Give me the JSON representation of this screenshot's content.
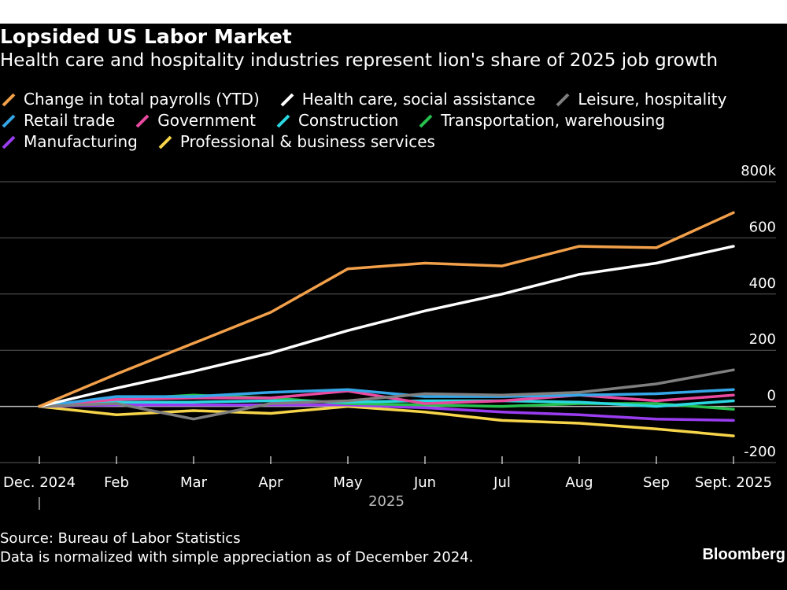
{
  "header": {
    "title": "Lopsided US Labor Market",
    "subtitle": "Health care and hospitality industries represent lion's share of 2025 job growth"
  },
  "footer": {
    "source": "Source: Bureau of Labor Statistics",
    "note": "Data is normalized with simple appreciation as of December 2024.",
    "brand": "Bloomberg"
  },
  "chart_data": {
    "type": "line",
    "title": "Lopsided US Labor Market",
    "subtitle": "Health care and hospitality industries represent lion's share of 2025 job growth",
    "xlabel": "2025",
    "ylabel": "",
    "ylim": [
      -200,
      800
    ],
    "yticks": [
      800,
      600,
      400,
      200,
      0,
      -200
    ],
    "ytick_labels": [
      "800k",
      "600",
      "400",
      "200",
      "0",
      "-200"
    ],
    "y_axis_side": "right",
    "grid": true,
    "legend_position": "top",
    "categories": [
      "Dec. 2024",
      "Feb",
      "Mar",
      "Apr",
      "May",
      "Jun",
      "Jul",
      "Aug",
      "Sep",
      "Sept. 2025"
    ],
    "first_tick_extra": "|",
    "series": [
      {
        "name": "Change in total payrolls (YTD)",
        "color": "#f2a04a",
        "values": [
          0,
          115,
          225,
          335,
          490,
          510,
          500,
          570,
          565,
          690
        ]
      },
      {
        "name": "Health care, social assistance",
        "color": "#ffffff",
        "values": [
          0,
          65,
          125,
          190,
          270,
          340,
          400,
          470,
          510,
          570
        ]
      },
      {
        "name": "Leisure, hospitality",
        "color": "#7f7f7f",
        "values": [
          0,
          10,
          -45,
          10,
          20,
          45,
          40,
          50,
          80,
          130
        ]
      },
      {
        "name": "Retail trade",
        "color": "#35a7e8",
        "values": [
          0,
          35,
          35,
          50,
          60,
          35,
          35,
          40,
          45,
          60
        ]
      },
      {
        "name": "Government",
        "color": "#e94a9f",
        "values": [
          0,
          25,
          30,
          30,
          55,
          10,
          20,
          40,
          20,
          40
        ]
      },
      {
        "name": "Construction",
        "color": "#2bd7e0",
        "values": [
          0,
          15,
          15,
          20,
          15,
          20,
          20,
          15,
          0,
          20
        ]
      },
      {
        "name": "Transportation, warehousing",
        "color": "#27c04e",
        "values": [
          0,
          25,
          40,
          30,
          10,
          5,
          0,
          10,
          10,
          -10
        ]
      },
      {
        "name": "Manufacturing",
        "color": "#9a3df0",
        "values": [
          0,
          5,
          5,
          5,
          5,
          -5,
          -20,
          -30,
          -45,
          -50
        ]
      },
      {
        "name": "Professional & business services",
        "color": "#f7d54a",
        "values": [
          0,
          -30,
          -15,
          -25,
          0,
          -20,
          -50,
          -60,
          -80,
          -105
        ]
      }
    ]
  }
}
